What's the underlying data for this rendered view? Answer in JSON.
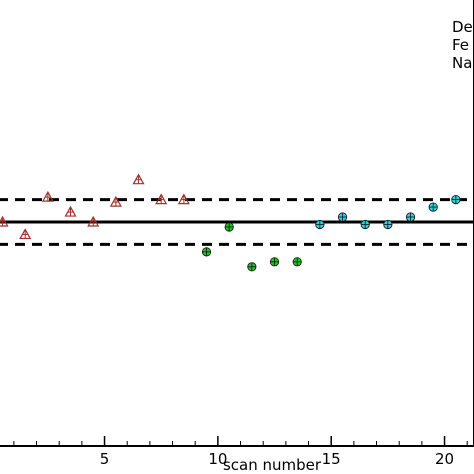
{
  "chart_data": {
    "type": "scatter",
    "xlabel": "scan number",
    "ylabel": "",
    "xlim": [
      0.3,
      21.3
    ],
    "ylim": [
      0.91,
      1.09
    ],
    "x_ticks": [
      {
        "value": 5,
        "label": "5"
      },
      {
        "value": 10,
        "label": "10"
      },
      {
        "value": 15,
        "label": "15"
      },
      {
        "value": 20,
        "label": "20"
      }
    ],
    "reference_lines": {
      "solid": 1.0,
      "dashed": [
        0.991,
        1.009
      ]
    },
    "legend_entries": [
      "De",
      "Fe",
      "Na"
    ],
    "series": [
      {
        "marker": "triangle",
        "color": "#a0302a",
        "x": [
          0.5,
          1.5,
          2.5,
          3.5,
          4.5,
          5.5,
          6.5,
          7.5,
          8.5
        ],
        "y": [
          1.0,
          0.995,
          1.01,
          1.004,
          1.0,
          1.008,
          1.017,
          1.009,
          1.009
        ]
      },
      {
        "marker": "circle",
        "color": "#22c322",
        "x": [
          9.5,
          10.5,
          11.5,
          12.5,
          13.5
        ],
        "y": [
          0.988,
          0.998,
          0.982,
          0.984,
          0.984
        ]
      },
      {
        "marker": "circle",
        "color": "#2ad4e0",
        "x": [
          14.5,
          15.5,
          16.5,
          17.5,
          18.5,
          19.5,
          20.5
        ],
        "y": [
          0.999,
          1.002,
          0.999,
          0.999,
          1.002,
          1.006,
          1.009
        ]
      }
    ]
  }
}
